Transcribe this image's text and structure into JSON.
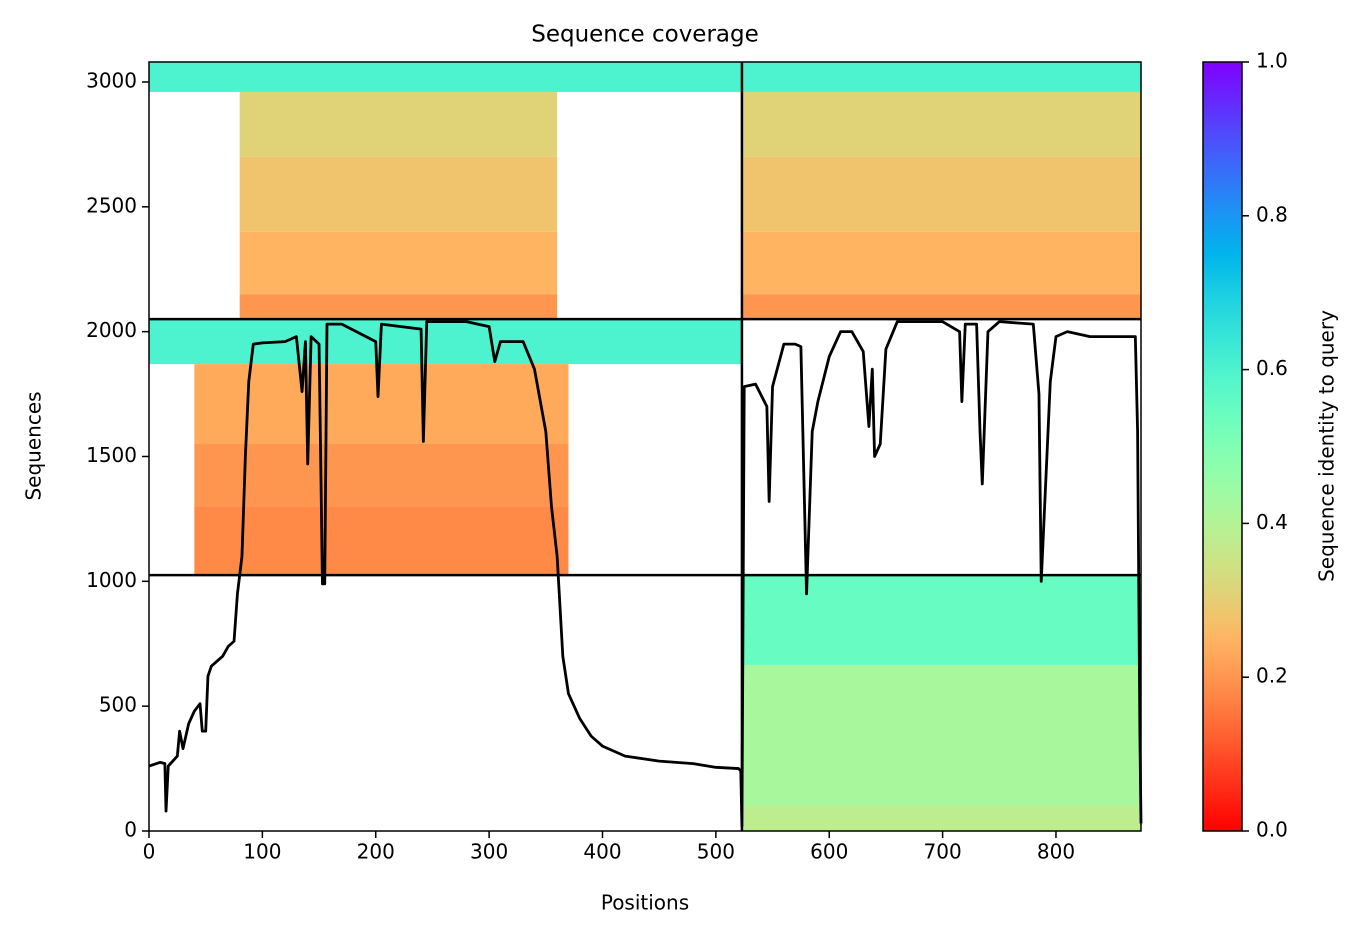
{
  "chart_data": {
    "type": "coverage",
    "title": "Sequence coverage",
    "xlabel": "Positions",
    "ylabel": "Sequences",
    "colorbar_label": "Sequence identity to query",
    "colormap": "rainbow_r",
    "clim": [
      0,
      1
    ],
    "cticks": [
      {
        "value": 0,
        "label": "0.0"
      },
      0.2,
      0.4,
      0.6,
      0.8,
      {
        "value": 1,
        "label": "1.0"
      }
    ],
    "xlim": [
      0,
      875
    ],
    "ylim": [
      0,
      3080
    ],
    "xticks": [
      0,
      100,
      200,
      300,
      400,
      500,
      600,
      700,
      800
    ],
    "yticks": [
      0,
      500,
      1000,
      1500,
      2000,
      2500,
      3000
    ],
    "blocks": [
      {
        "x": [
          0,
          523
        ],
        "y": [
          2960,
          3080
        ],
        "identity": 0.6
      },
      {
        "x": [
          80,
          360
        ],
        "y": [
          2700,
          2960
        ],
        "identity": 0.31
      },
      {
        "x": [
          80,
          360
        ],
        "y": [
          2400,
          2700
        ],
        "identity": 0.28
      },
      {
        "x": [
          80,
          360
        ],
        "y": [
          2150,
          2400
        ],
        "identity": 0.25
      },
      {
        "x": [
          80,
          360
        ],
        "y": [
          2050,
          2150
        ],
        "identity": 0.2
      },
      {
        "x": [
          523,
          875
        ],
        "y": [
          2960,
          3080
        ],
        "identity": 0.6
      },
      {
        "x": [
          523,
          875
        ],
        "y": [
          2700,
          2960
        ],
        "identity": 0.31
      },
      {
        "x": [
          523,
          875
        ],
        "y": [
          2400,
          2700
        ],
        "identity": 0.28
      },
      {
        "x": [
          523,
          875
        ],
        "y": [
          2150,
          2400
        ],
        "identity": 0.25
      },
      {
        "x": [
          523,
          875
        ],
        "y": [
          2050,
          2150
        ],
        "identity": 0.2
      },
      {
        "x": [
          0,
          523
        ],
        "y": [
          1870,
          2050
        ],
        "identity": 0.6
      },
      {
        "x": [
          40,
          370
        ],
        "y": [
          1550,
          1870
        ],
        "identity": 0.23
      },
      {
        "x": [
          40,
          370
        ],
        "y": [
          1300,
          1550
        ],
        "identity": 0.2
      },
      {
        "x": [
          40,
          370
        ],
        "y": [
          1025,
          1300
        ],
        "identity": 0.18
      },
      {
        "x": [
          523,
          875
        ],
        "y": [
          665,
          1025
        ],
        "identity": 0.55
      },
      {
        "x": [
          523,
          875
        ],
        "y": [
          100,
          665
        ],
        "identity": 0.42
      },
      {
        "x": [
          523,
          875
        ],
        "y": [
          0,
          100
        ],
        "identity": 0.38
      }
    ],
    "dividers": {
      "x": [
        523
      ],
      "y": [
        1025,
        2050
      ]
    },
    "coverage": {
      "x": [
        0,
        10,
        14,
        15,
        17,
        25,
        27,
        30,
        35,
        40,
        45,
        47,
        50,
        52,
        55,
        60,
        65,
        70,
        75,
        78,
        82,
        85,
        88,
        92,
        100,
        120,
        130,
        135,
        138,
        140,
        143,
        150,
        153,
        155,
        157,
        170,
        200,
        202,
        205,
        240,
        242,
        245,
        280,
        300,
        305,
        310,
        330,
        340,
        350,
        355,
        360,
        365,
        370,
        380,
        390,
        400,
        420,
        450,
        480,
        500,
        520,
        522,
        523,
        525,
        535,
        545,
        547,
        550,
        560,
        570,
        575,
        580,
        585,
        590,
        600,
        610,
        620,
        630,
        635,
        638,
        640,
        645,
        650,
        660,
        700,
        715,
        717,
        720,
        730,
        733,
        735,
        740,
        750,
        780,
        785,
        787,
        790,
        795,
        800,
        810,
        830,
        870,
        872,
        874,
        875
      ],
      "values": [
        260,
        275,
        270,
        80,
        260,
        300,
        400,
        330,
        430,
        480,
        510,
        400,
        400,
        620,
        660,
        680,
        700,
        740,
        760,
        950,
        1100,
        1500,
        1800,
        1950,
        1955,
        1960,
        1980,
        1760,
        1960,
        1470,
        1980,
        1950,
        990,
        990,
        2030,
        2030,
        1960,
        1740,
        2030,
        2010,
        1560,
        2040,
        2040,
        2020,
        1880,
        1960,
        1960,
        1850,
        1600,
        1300,
        1100,
        700,
        550,
        450,
        380,
        340,
        300,
        280,
        270,
        255,
        250,
        240,
        20,
        1780,
        1790,
        1700,
        1320,
        1780,
        1950,
        1950,
        1940,
        950,
        1600,
        1720,
        1900,
        2000,
        2000,
        1920,
        1620,
        1850,
        1500,
        1550,
        1930,
        2040,
        2040,
        2000,
        1720,
        2030,
        2030,
        1600,
        1390,
        2000,
        2040,
        2030,
        1750,
        1000,
        1300,
        1800,
        1980,
        2000,
        1980,
        1980,
        1600,
        400,
        30
      ]
    }
  }
}
